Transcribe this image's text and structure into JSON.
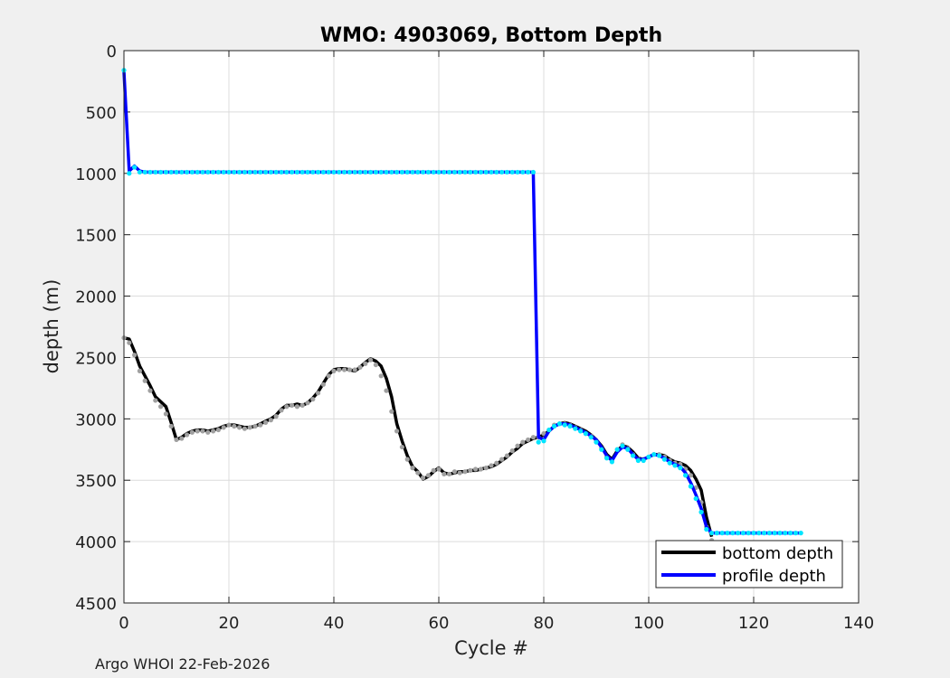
{
  "chart_data": {
    "type": "line",
    "title": "WMO: 4903069, Bottom Depth",
    "xlabel": "Cycle #",
    "ylabel": "depth (m)",
    "xlim": [
      0,
      140
    ],
    "ylim": [
      0,
      4500
    ],
    "y_reversed": true,
    "grid": true,
    "x_ticks": [
      0,
      20,
      40,
      60,
      80,
      100,
      120,
      140
    ],
    "y_ticks": [
      0,
      500,
      1000,
      1500,
      2000,
      2500,
      3000,
      3500,
      4000,
      4500
    ],
    "legend_position": "bottom-right",
    "series": [
      {
        "name": "bottom depth",
        "color": "#000000",
        "style": "line",
        "x": [
          0,
          1,
          2,
          3,
          4,
          5,
          6,
          7,
          8,
          9,
          10,
          11,
          12,
          13,
          14,
          15,
          16,
          17,
          18,
          19,
          20,
          21,
          22,
          23,
          24,
          25,
          26,
          27,
          28,
          29,
          30,
          31,
          32,
          33,
          34,
          35,
          36,
          37,
          38,
          39,
          40,
          41,
          42,
          43,
          44,
          45,
          46,
          47,
          48,
          49,
          50,
          51,
          52,
          53,
          54,
          55,
          56,
          57,
          58,
          59,
          60,
          61,
          62,
          63,
          64,
          65,
          66,
          67,
          68,
          69,
          70,
          71,
          72,
          73,
          74,
          75,
          76,
          77,
          78,
          79,
          80,
          81,
          82,
          83,
          84,
          85,
          86,
          87,
          88,
          89,
          90,
          91,
          92,
          93,
          94,
          95,
          96,
          97,
          98,
          99,
          100,
          101,
          102,
          103,
          104,
          105,
          106,
          107,
          108,
          109,
          110,
          111,
          112
        ],
        "values": [
          2340,
          2350,
          2450,
          2570,
          2650,
          2730,
          2820,
          2860,
          2900,
          3030,
          3170,
          3150,
          3120,
          3100,
          3090,
          3090,
          3100,
          3090,
          3080,
          3060,
          3050,
          3050,
          3060,
          3070,
          3070,
          3060,
          3040,
          3020,
          3000,
          2970,
          2920,
          2890,
          2890,
          2880,
          2890,
          2870,
          2830,
          2780,
          2710,
          2640,
          2600,
          2590,
          2590,
          2600,
          2610,
          2580,
          2540,
          2510,
          2530,
          2570,
          2670,
          2820,
          3040,
          3180,
          3300,
          3390,
          3430,
          3490,
          3470,
          3430,
          3400,
          3440,
          3450,
          3440,
          3430,
          3430,
          3420,
          3420,
          3410,
          3400,
          3390,
          3370,
          3340,
          3310,
          3270,
          3240,
          3200,
          3180,
          3160,
          3150,
          3130,
          3100,
          3060,
          3040,
          3030,
          3040,
          3060,
          3080,
          3100,
          3130,
          3170,
          3220,
          3290,
          3330,
          3260,
          3220,
          3230,
          3270,
          3320,
          3330,
          3310,
          3290,
          3290,
          3300,
          3330,
          3350,
          3360,
          3380,
          3420,
          3490,
          3580,
          3800,
          3960
        ]
      },
      {
        "name": "bottom depth samples",
        "color": "#a0a0a0",
        "style": "dots",
        "x": [
          0,
          1,
          2,
          3,
          4,
          5,
          6,
          7,
          8,
          9,
          10,
          11,
          12,
          13,
          14,
          15,
          16,
          17,
          18,
          19,
          20,
          21,
          22,
          23,
          24,
          25,
          26,
          27,
          28,
          29,
          30,
          31,
          32,
          33,
          34,
          35,
          36,
          37,
          38,
          39,
          40,
          41,
          42,
          43,
          44,
          45,
          46,
          47,
          48,
          49,
          50,
          51,
          52,
          53,
          54,
          55,
          56,
          57,
          58,
          59,
          60,
          61,
          62,
          63,
          64,
          65,
          66,
          67,
          68,
          69,
          70,
          71,
          72,
          73,
          74,
          75,
          76,
          77,
          78,
          79,
          80,
          81,
          82,
          83,
          84,
          85,
          86,
          87,
          88,
          89,
          90,
          91,
          92,
          93,
          94,
          95,
          96,
          97,
          98,
          99,
          100,
          101,
          102,
          103,
          104,
          105,
          106,
          107,
          108,
          109,
          110,
          111,
          112
        ],
        "values": [
          2340,
          2380,
          2480,
          2610,
          2690,
          2770,
          2850,
          2900,
          2960,
          3060,
          3170,
          3160,
          3130,
          3110,
          3100,
          3100,
          3110,
          3100,
          3090,
          3070,
          3050,
          3060,
          3070,
          3080,
          3070,
          3060,
          3050,
          3030,
          3010,
          2980,
          2930,
          2900,
          2890,
          2900,
          2890,
          2870,
          2840,
          2790,
          2720,
          2650,
          2610,
          2600,
          2600,
          2600,
          2600,
          2580,
          2550,
          2520,
          2560,
          2650,
          2770,
          2940,
          3100,
          3230,
          3330,
          3400,
          3440,
          3480,
          3460,
          3420,
          3410,
          3450,
          3450,
          3430,
          3440,
          3430,
          3420,
          3410,
          3410,
          3400,
          3380,
          3360,
          3330,
          3300,
          3260,
          3220,
          3190,
          3170,
          3150,
          3150,
          3120,
          3090,
          3050,
          3040,
          3040,
          3050,
          3070,
          3090,
          3120,
          3140,
          3180,
          3240,
          3310,
          3340,
          3250,
          3210,
          3240,
          3290,
          3330,
          3330,
          3310,
          3290,
          3290,
          3310,
          3340,
          3360,
          3370,
          3410,
          3460,
          3560,
          3680,
          3880,
          3990
        ]
      },
      {
        "name": "profile depth",
        "color": "#0000ff",
        "style": "line",
        "x": [
          0,
          1,
          2,
          3,
          4,
          5,
          6,
          7,
          8,
          9,
          10,
          11,
          12,
          13,
          14,
          15,
          16,
          17,
          18,
          19,
          20,
          21,
          22,
          23,
          24,
          25,
          26,
          27,
          28,
          29,
          30,
          31,
          32,
          33,
          34,
          35,
          36,
          37,
          38,
          39,
          40,
          41,
          42,
          43,
          44,
          45,
          46,
          47,
          48,
          49,
          50,
          51,
          52,
          53,
          54,
          55,
          56,
          57,
          58,
          59,
          60,
          61,
          62,
          63,
          64,
          65,
          66,
          67,
          68,
          69,
          70,
          71,
          72,
          73,
          74,
          75,
          76,
          77,
          78,
          79,
          80,
          81,
          82,
          83,
          84,
          85,
          86,
          87,
          88,
          89,
          90,
          91,
          92,
          93,
          94,
          95,
          96,
          97,
          98,
          99,
          100,
          101,
          102,
          103,
          104,
          105,
          106,
          107,
          108,
          109,
          110,
          111,
          112,
          113,
          114,
          115,
          116,
          117,
          118,
          119,
          120,
          121,
          122,
          123,
          124,
          125,
          126,
          127,
          128,
          129
        ],
        "values": [
          170,
          980,
          940,
          980,
          990,
          990,
          990,
          990,
          990,
          990,
          990,
          990,
          990,
          990,
          990,
          990,
          990,
          990,
          990,
          990,
          990,
          990,
          990,
          990,
          990,
          990,
          990,
          990,
          990,
          990,
          990,
          990,
          990,
          990,
          990,
          990,
          990,
          990,
          990,
          990,
          990,
          990,
          990,
          990,
          990,
          990,
          990,
          990,
          990,
          990,
          990,
          990,
          990,
          990,
          990,
          990,
          990,
          990,
          990,
          990,
          990,
          990,
          990,
          990,
          990,
          990,
          990,
          990,
          990,
          990,
          990,
          990,
          990,
          990,
          990,
          990,
          990,
          990,
          990,
          3150,
          3170,
          3100,
          3060,
          3040,
          3040,
          3050,
          3070,
          3090,
          3110,
          3140,
          3170,
          3230,
          3300,
          3340,
          3270,
          3230,
          3240,
          3290,
          3330,
          3330,
          3310,
          3290,
          3300,
          3320,
          3350,
          3370,
          3390,
          3440,
          3520,
          3620,
          3730,
          3880,
          3930,
          3930,
          3930,
          3930,
          3930,
          3930,
          3930,
          3930,
          3930,
          3930,
          3930,
          3930,
          3930,
          3930,
          3930,
          3930,
          3930,
          3930
        ]
      },
      {
        "name": "profile depth samples",
        "color": "#00e5ff",
        "style": "dots",
        "x": [
          0,
          1,
          2,
          3,
          4,
          5,
          6,
          7,
          8,
          9,
          10,
          11,
          12,
          13,
          14,
          15,
          16,
          17,
          18,
          19,
          20,
          21,
          22,
          23,
          24,
          25,
          26,
          27,
          28,
          29,
          30,
          31,
          32,
          33,
          34,
          35,
          36,
          37,
          38,
          39,
          40,
          41,
          42,
          43,
          44,
          45,
          46,
          47,
          48,
          49,
          50,
          51,
          52,
          53,
          54,
          55,
          56,
          57,
          58,
          59,
          60,
          61,
          62,
          63,
          64,
          65,
          66,
          67,
          68,
          69,
          70,
          71,
          72,
          73,
          74,
          75,
          76,
          77,
          78,
          79,
          80,
          81,
          82,
          83,
          84,
          85,
          86,
          87,
          88,
          89,
          90,
          91,
          92,
          93,
          94,
          95,
          96,
          97,
          98,
          99,
          100,
          101,
          102,
          103,
          104,
          105,
          106,
          107,
          108,
          109,
          110,
          111,
          112,
          113,
          114,
          115,
          116,
          117,
          118,
          119,
          120,
          121,
          122,
          123,
          124,
          125,
          126,
          127,
          128,
          129
        ],
        "values": [
          160,
          1000,
          950,
          990,
          990,
          990,
          990,
          990,
          990,
          990,
          990,
          990,
          990,
          990,
          990,
          990,
          990,
          990,
          990,
          990,
          990,
          990,
          990,
          990,
          990,
          990,
          990,
          990,
          990,
          990,
          990,
          990,
          990,
          990,
          990,
          990,
          990,
          990,
          990,
          990,
          990,
          990,
          990,
          990,
          990,
          990,
          990,
          990,
          990,
          990,
          990,
          990,
          990,
          990,
          990,
          990,
          990,
          990,
          990,
          990,
          990,
          990,
          990,
          990,
          990,
          990,
          990,
          990,
          990,
          990,
          990,
          990,
          990,
          990,
          990,
          990,
          990,
          990,
          990,
          3190,
          3180,
          3090,
          3060,
          3040,
          3050,
          3060,
          3080,
          3100,
          3120,
          3150,
          3190,
          3250,
          3320,
          3350,
          3250,
          3220,
          3250,
          3300,
          3340,
          3340,
          3310,
          3290,
          3300,
          3330,
          3360,
          3380,
          3400,
          3460,
          3550,
          3650,
          3760,
          3900,
          3930,
          3930,
          3930,
          3930,
          3930,
          3930,
          3930,
          3930,
          3930,
          3930,
          3930,
          3930,
          3930,
          3930,
          3930,
          3930,
          3930,
          3930
        ]
      }
    ]
  },
  "legend": {
    "items": [
      {
        "label": "bottom depth",
        "color": "#000000"
      },
      {
        "label": "profile depth",
        "color": "#0000ff"
      }
    ]
  },
  "footer": {
    "text": "Argo WHOI 22-Feb-2026"
  }
}
